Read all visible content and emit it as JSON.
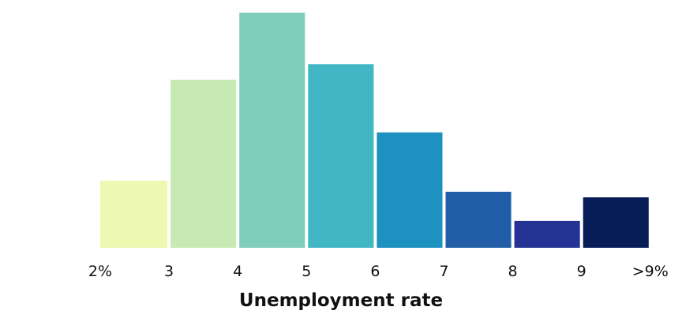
{
  "chart_data": {
    "type": "bar",
    "title": "",
    "xlabel": "Unemployment rate",
    "ylabel": "",
    "x_tick_labels": [
      "2%",
      "3",
      "4",
      "5",
      "6",
      "7",
      "8",
      "9",
      ">9%"
    ],
    "bins": [
      {
        "from": 2,
        "to": 3,
        "value": 3.0,
        "color": "#edf8b1"
      },
      {
        "from": 3,
        "to": 4,
        "value": 7.5,
        "color": "#c7e9b4"
      },
      {
        "from": 4,
        "to": 5,
        "value": 10.5,
        "color": "#7fcdbb"
      },
      {
        "from": 5,
        "to": 6,
        "value": 8.2,
        "color": "#41b6c4"
      },
      {
        "from": 6,
        "to": 7,
        "value": 5.15,
        "color": "#1d91c0"
      },
      {
        "from": 7,
        "to": 8,
        "value": 2.5,
        "color": "#225ea8"
      },
      {
        "from": 8,
        "to": 9,
        "value": 1.2,
        "color": "#253494"
      },
      {
        "from": 9,
        "to": 10,
        "value": 2.25,
        "color": "#081d58"
      }
    ],
    "ylim": [
      0,
      10.5
    ],
    "grid": false,
    "legend": "none"
  }
}
